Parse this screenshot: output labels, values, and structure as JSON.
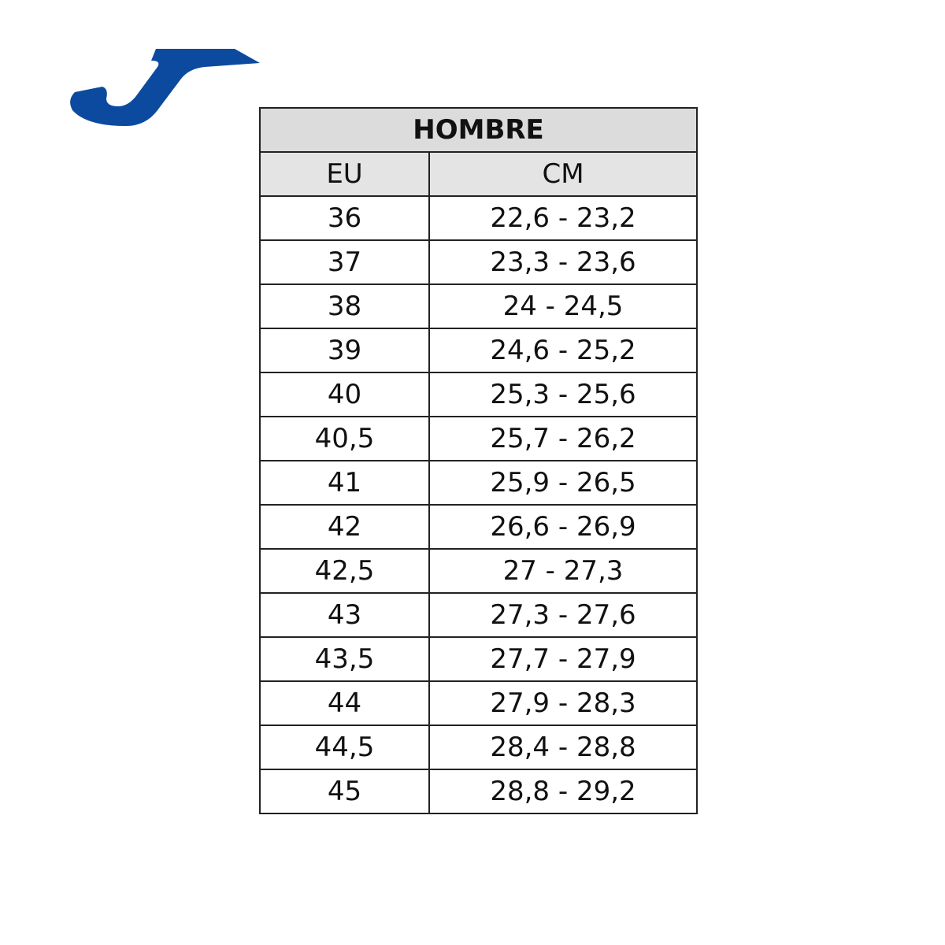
{
  "table": {
    "title": "HOMBRE",
    "headers": [
      "EU",
      "CM"
    ],
    "rows": [
      [
        "36",
        "22,6 - 23,2"
      ],
      [
        "37",
        "23,3 - 23,6"
      ],
      [
        "38",
        "24 - 24,5"
      ],
      [
        "39",
        "24,6 - 25,2"
      ],
      [
        "40",
        "25,3 - 25,6"
      ],
      [
        "40,5",
        "25,7 - 26,2"
      ],
      [
        "41",
        "25,9 - 26,5"
      ],
      [
        "42",
        "26,6 - 26,9"
      ],
      [
        "42,5",
        "27 - 27,3"
      ],
      [
        "43",
        "27,3 - 27,6"
      ],
      [
        "43,5",
        "27,7 - 27,9"
      ],
      [
        "44",
        "27,9 - 28,3"
      ],
      [
        "44,5",
        "28,4 - 28,8"
      ],
      [
        "45",
        "28,8 - 29,2"
      ]
    ]
  }
}
